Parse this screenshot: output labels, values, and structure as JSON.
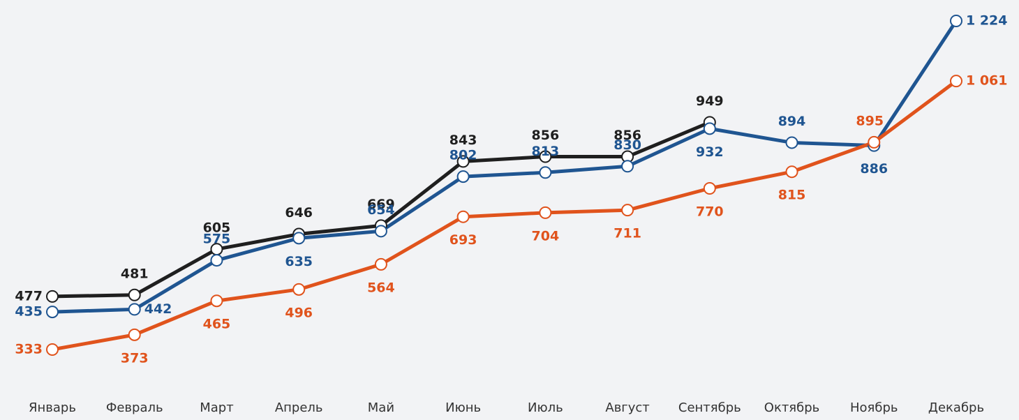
{
  "chart_data": {
    "type": "line",
    "categories": [
      "Январь",
      "Февраль",
      "Март",
      "Апрель",
      "Май",
      "Июнь",
      "Июль",
      "Август",
      "Сентябрь",
      "Октябрь",
      "Ноябрь",
      "Декабрь"
    ],
    "series": [
      {
        "color": "#1f1f1f",
        "values": [
          477,
          481,
          605,
          646,
          669,
          843,
          856,
          856,
          949,
          null,
          null,
          null
        ]
      },
      {
        "color": "#1f5591",
        "values": [
          435,
          442,
          575,
          635,
          654,
          802,
          813,
          830,
          932,
          894,
          886,
          1224
        ],
        "value_labels": [
          "435",
          "442",
          "575",
          "635",
          "654",
          "802",
          "813",
          "830",
          "932",
          "894",
          "886",
          "1 224"
        ]
      },
      {
        "color": "#e0531c",
        "values": [
          333,
          373,
          465,
          496,
          564,
          693,
          704,
          711,
          770,
          815,
          895,
          1061
        ],
        "value_labels": [
          "333",
          "373",
          "465",
          "496",
          "564",
          "693",
          "704",
          "711",
          "770",
          "815",
          "895",
          "1 061"
        ]
      }
    ]
  }
}
